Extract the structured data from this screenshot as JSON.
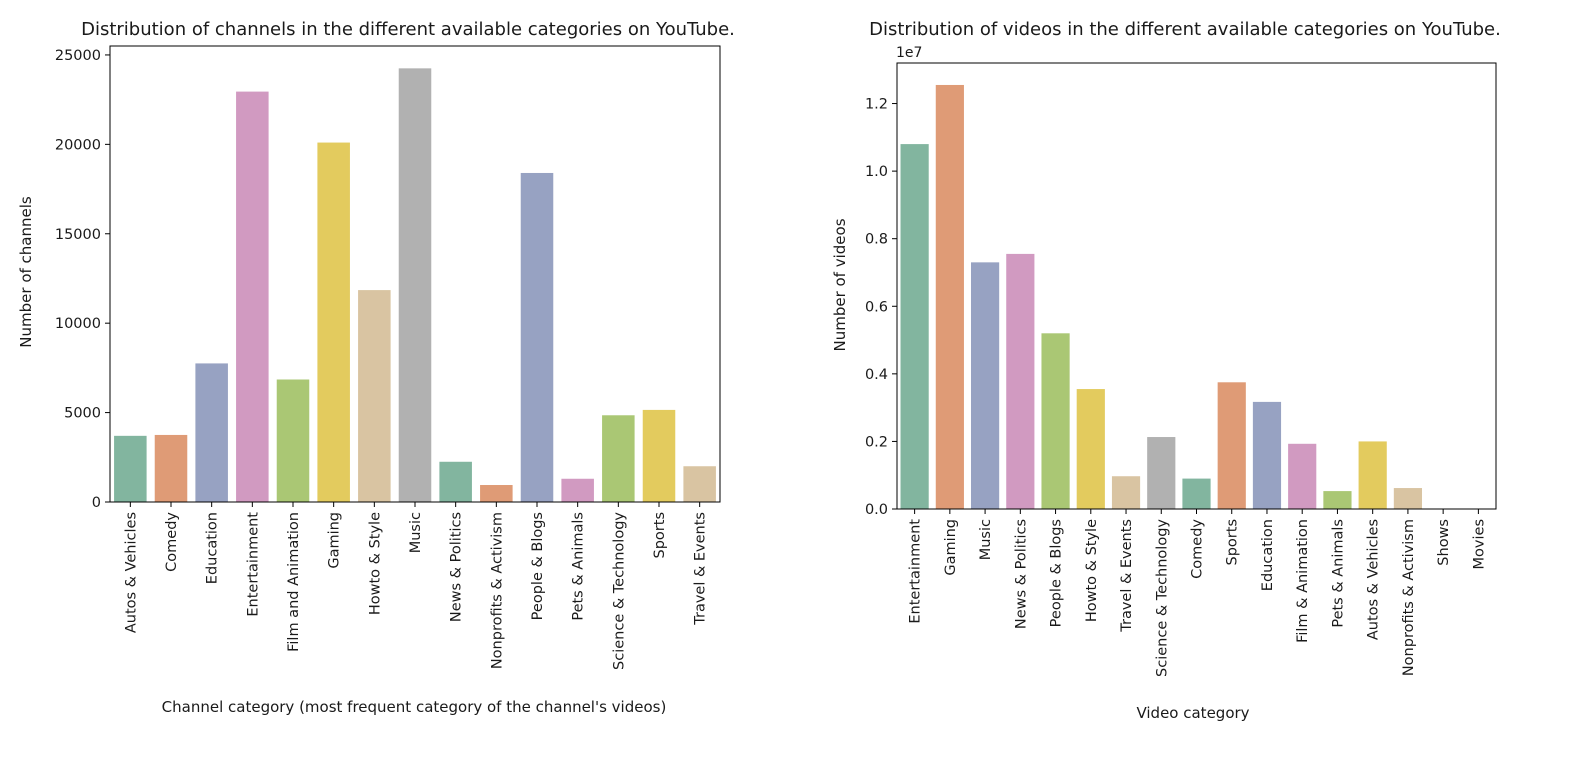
{
  "chart_data": [
    {
      "type": "bar",
      "title": "Distribution of channels in the different available categories on YouTube.",
      "xlabel": "Channel category (most frequent category of the channel's videos)",
      "ylabel": "Number of channels",
      "ylim": [
        0,
        25500
      ],
      "yticks": [
        0,
        5000,
        10000,
        15000,
        20000,
        25000
      ],
      "ytick_labels": [
        "0",
        "5000",
        "10000",
        "15000",
        "20000",
        "25000"
      ],
      "categories": [
        "Autos & Vehicles",
        "Comedy",
        "Education",
        "Entertainment",
        "Film and Animation",
        "Gaming",
        "Howto & Style",
        "Music",
        "News & Politics",
        "Nonprofits & Activism",
        "People & Blogs",
        "Pets & Animals",
        "Science & Technology",
        "Sports",
        "Travel & Events"
      ],
      "values": [
        3700,
        3750,
        7750,
        22950,
        6850,
        20100,
        11850,
        24250,
        2250,
        950,
        18400,
        1300,
        4850,
        5150,
        2000
      ],
      "colors": [
        "#82b59f",
        "#df9b76",
        "#97a2c2",
        "#d19ac1",
        "#aac774",
        "#e3cb5e",
        "#d9c4a2",
        "#b1b1b1",
        "#82b59f",
        "#df9b76",
        "#97a2c2",
        "#d19ac1",
        "#aac774",
        "#e3cb5e",
        "#d9c4a2"
      ],
      "grid": false,
      "legend": false
    },
    {
      "type": "bar",
      "title": "Distribution of videos in the different available categories on YouTube.",
      "xlabel": "Video category",
      "ylabel": "Number of videos",
      "y_offset_label": "1e7",
      "ylim": [
        0,
        13200000
      ],
      "yticks": [
        0,
        2000000,
        4000000,
        6000000,
        8000000,
        10000000,
        12000000
      ],
      "ytick_labels": [
        "0.0",
        "0.2",
        "0.4",
        "0.6",
        "0.8",
        "1.0",
        "1.2"
      ],
      "categories": [
        "Entertainment",
        "Gaming",
        "Music",
        "News & Politics",
        "People & Blogs",
        "Howto & Style",
        "Travel & Events",
        "Science & Technology",
        "Comedy",
        "Sports",
        "Education",
        "Film & Animation",
        "Pets & Animals",
        "Autos & Vehicles",
        "Nonprofits & Activism",
        "Shows",
        "Movies"
      ],
      "values": [
        10800000,
        12550000,
        7300000,
        7550000,
        5200000,
        3550000,
        970000,
        2130000,
        900000,
        3750000,
        3170000,
        1930000,
        530000,
        2000000,
        620000,
        0,
        0
      ],
      "colors": [
        "#82b59f",
        "#df9b76",
        "#97a2c2",
        "#d19ac1",
        "#aac774",
        "#e3cb5e",
        "#d9c4a2",
        "#b1b1b1",
        "#82b59f",
        "#df9b76",
        "#97a2c2",
        "#d19ac1",
        "#aac774",
        "#e3cb5e",
        "#d9c4a2",
        "#b1b1b1",
        "#82b59f"
      ],
      "grid": false,
      "legend": false
    }
  ]
}
